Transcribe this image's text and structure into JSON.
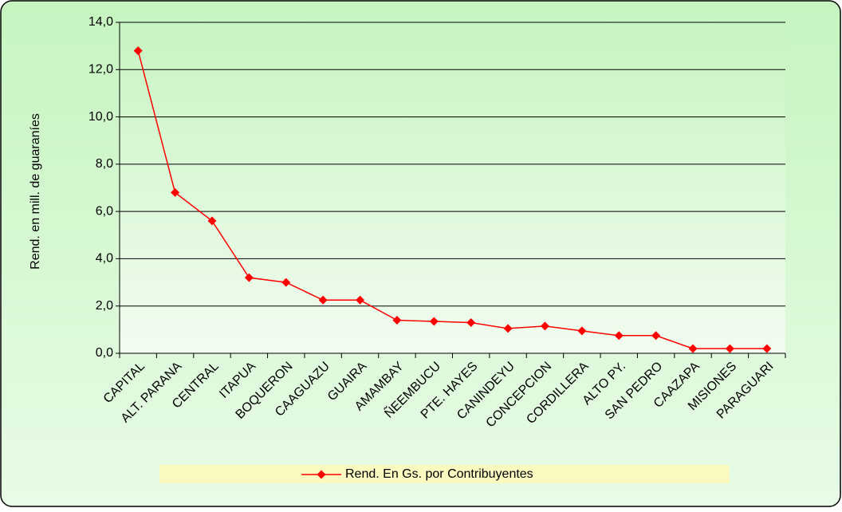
{
  "chart_data": {
    "type": "line",
    "y_label": "Rend. en mill. de guaraníes",
    "categories": [
      "CAPITAL",
      "ALT. PARANA",
      "CENTRAL",
      "ITAPUA",
      "BOQUERON",
      "CAAGUAZU",
      "GUAIRA",
      "AMAMBAY",
      "ÑEEMBUCU",
      "PTE. HAYES",
      "CANINDEYU",
      "CONCEPCION",
      "CORDILLERA",
      "ALTO PY.",
      "SAN PEDRO",
      "CAAZAPA",
      "MISIONES",
      "PARAGUARI"
    ],
    "series": [
      {
        "name": "Rend. En Gs. por Contribuyentes",
        "color": "#ff0000",
        "values": [
          12.8,
          6.8,
          5.6,
          3.2,
          3.0,
          2.25,
          2.25,
          1.4,
          1.35,
          1.3,
          1.05,
          1.15,
          0.95,
          0.75,
          0.75,
          0.2,
          0.2,
          0.2
        ]
      }
    ],
    "ylim": [
      0,
      14
    ],
    "yticks": [
      {
        "value": 0,
        "label": "0,0"
      },
      {
        "value": 2,
        "label": "2,0"
      },
      {
        "value": 4,
        "label": "4,0"
      },
      {
        "value": 6,
        "label": "6,0"
      },
      {
        "value": 8,
        "label": "8,0"
      },
      {
        "value": 10,
        "label": "10,0"
      },
      {
        "value": 12,
        "label": "12,0"
      },
      {
        "value": 14,
        "label": "14,0"
      }
    ],
    "grid": true,
    "legend": "bottom"
  }
}
